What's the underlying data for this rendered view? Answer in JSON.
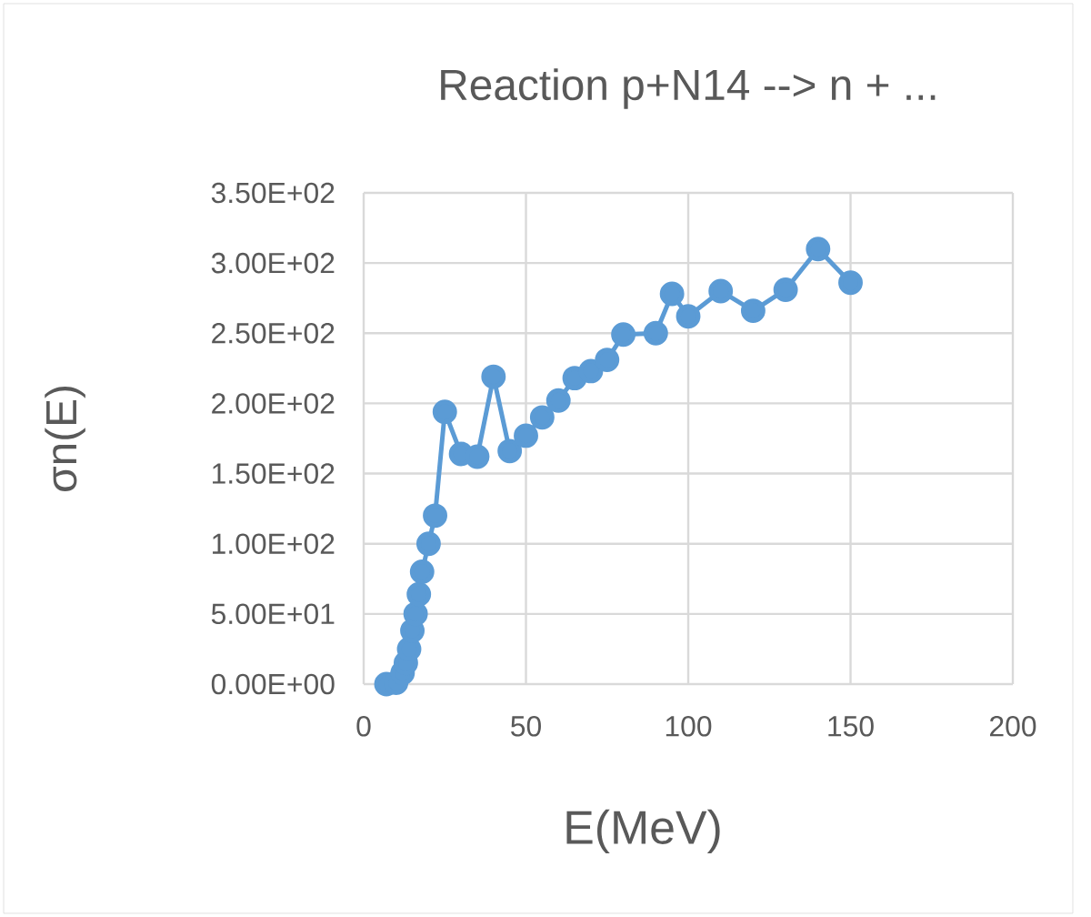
{
  "chart_data": {
    "type": "line",
    "title": "Reaction p+N14 --> n + ...",
    "xlabel": "E(MeV)",
    "ylabel": "σn(E)",
    "x": [
      7,
      10,
      12,
      13,
      14,
      15,
      16,
      17,
      18,
      20,
      22,
      25,
      30,
      35,
      40,
      45,
      50,
      55,
      60,
      65,
      70,
      75,
      80,
      90,
      95,
      100,
      110,
      120,
      130,
      140,
      150
    ],
    "series": [
      {
        "color": "#5b9bd5",
        "values": [
          0,
          1,
          8,
          15,
          25,
          38,
          50,
          64,
          80,
          100,
          120,
          194,
          164,
          162,
          219,
          166,
          177,
          190,
          202,
          218,
          223,
          231,
          249,
          250,
          278,
          262,
          280,
          266,
          281,
          310,
          286
        ]
      }
    ],
    "xlim": [
      0,
      200
    ],
    "xticks": [
      0,
      50,
      100,
      150,
      200
    ],
    "ylim": [
      0,
      350
    ],
    "yticks": [
      {
        "value": 0,
        "label": "0.00E+00"
      },
      {
        "value": 50,
        "label": "5.00E+01"
      },
      {
        "value": 100,
        "label": "1.00E+02"
      },
      {
        "value": 150,
        "label": "1.50E+02"
      },
      {
        "value": 200,
        "label": "2.00E+02"
      },
      {
        "value": 250,
        "label": "2.50E+02"
      },
      {
        "value": 300,
        "label": "3.00E+02"
      },
      {
        "value": 350,
        "label": "3.50E+02"
      }
    ],
    "grid": true,
    "marker": "circle",
    "line_style": "solid"
  }
}
